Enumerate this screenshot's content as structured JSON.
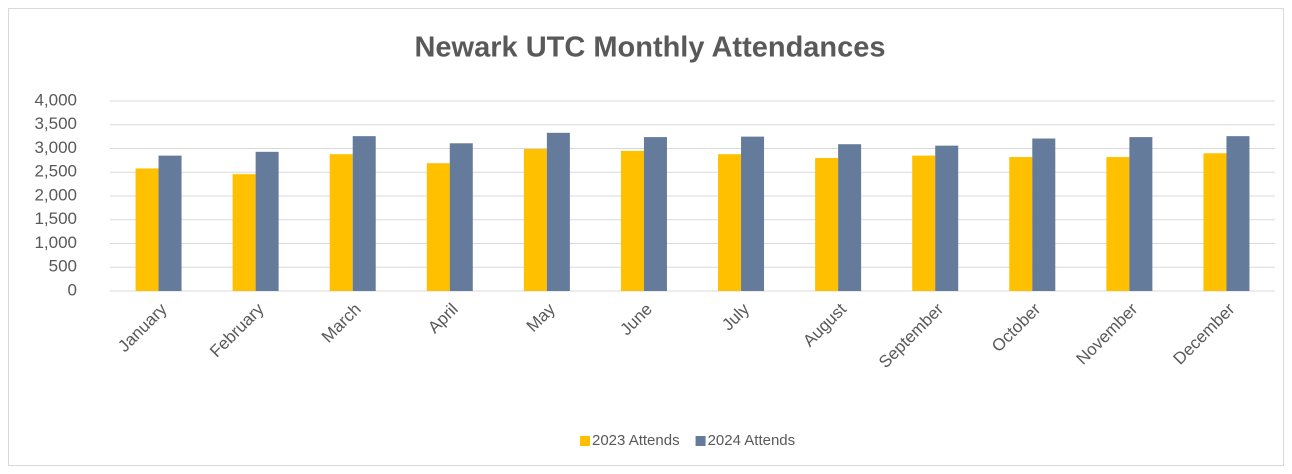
{
  "chart_data": {
    "type": "bar",
    "title": "Newark UTC Monthly Attendances",
    "categories": [
      "January",
      "February",
      "March",
      "April",
      "May",
      "June",
      "July",
      "August",
      "September",
      "October",
      "November",
      "December"
    ],
    "series": [
      {
        "name": "2023 Attends",
        "color": "#ffc000",
        "values": [
          2580,
          2460,
          2880,
          2690,
          2990,
          2950,
          2880,
          2800,
          2850,
          2820,
          2820,
          2900
        ]
      },
      {
        "name": "2024 Attends",
        "color": "#647b9b",
        "values": [
          2850,
          2930,
          3260,
          3110,
          3330,
          3240,
          3250,
          3090,
          3060,
          3210,
          3240,
          3260
        ]
      }
    ],
    "ylim": [
      0,
      4000
    ],
    "yticks": [
      0,
      500,
      {
        "value": 1000,
        "label": "1,000"
      },
      {
        "value": 1500,
        "label": "1,500"
      },
      {
        "value": 2000,
        "label": "2,000"
      },
      {
        "value": 2500,
        "label": "2,500"
      },
      {
        "value": 3000,
        "label": "3,000"
      },
      {
        "value": 3500,
        "label": "3,500"
      },
      {
        "value": 4000,
        "label": "4,000"
      }
    ],
    "grid": true,
    "legend": "bottom"
  }
}
